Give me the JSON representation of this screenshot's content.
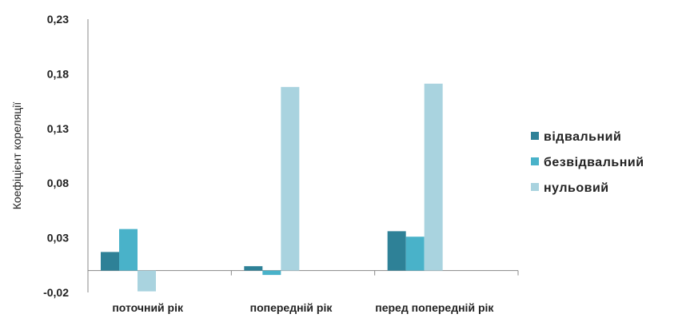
{
  "chart_data": {
    "type": "bar",
    "title": "",
    "xlabel": "",
    "ylabel": "Коефіцієнт кореляції",
    "categories": [
      "поточний рік",
      "попередній рік",
      "перед попередній рік"
    ],
    "series": [
      {
        "name": "відвальний",
        "color": "#2e8197",
        "values": [
          0.017,
          0.004,
          0.036
        ]
      },
      {
        "name": "безвідвальний",
        "color": "#49b2c9",
        "values": [
          0.038,
          -0.004,
          0.031
        ]
      },
      {
        "name": "нульовий",
        "color": "#a9d3df",
        "values": [
          -0.019,
          0.168,
          0.171
        ]
      }
    ],
    "ylim": [
      -0.02,
      0.23
    ],
    "yticks": [
      -0.02,
      0.03,
      0.08,
      0.13,
      0.18,
      0.23
    ],
    "ytick_labels": [
      "-0,02",
      "0,03",
      "0,08",
      "0,13",
      "0,18",
      "0,23"
    ],
    "grid": false,
    "legend_position": "right"
  }
}
